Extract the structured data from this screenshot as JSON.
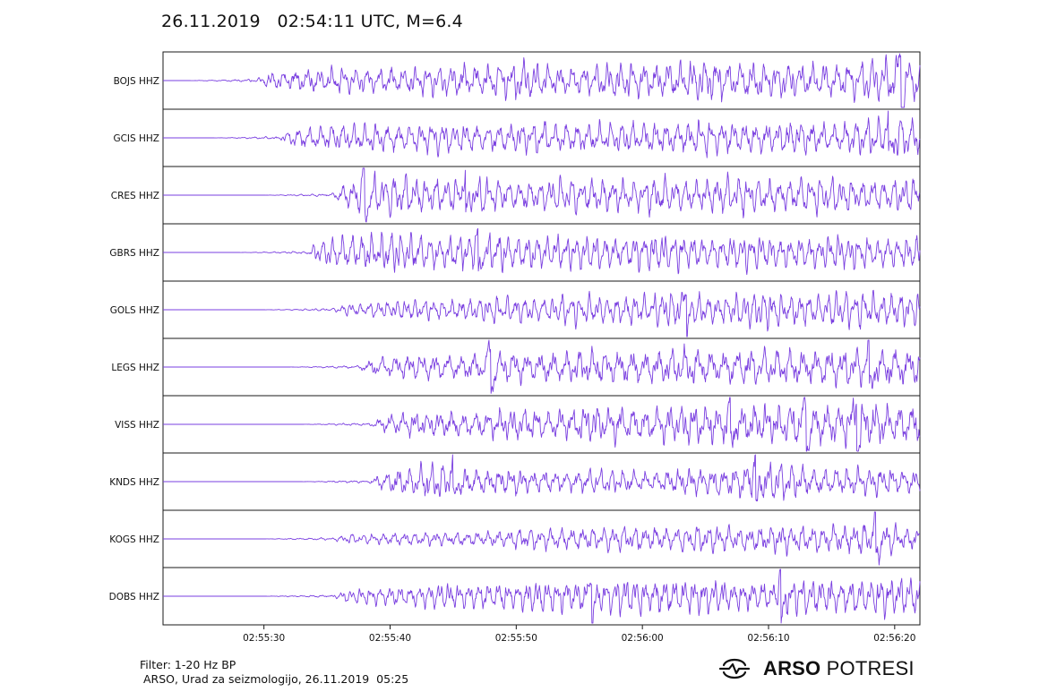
{
  "header": {
    "title": "26.11.2019   02:54:11 UTC, M=6.4"
  },
  "chart_data": {
    "type": "line",
    "title": "26.11.2019   02:54:11 UTC, M=6.4",
    "xlabel": "",
    "ylabel": "",
    "x_ticks": [
      "02:55:30",
      "02:55:40",
      "02:55:50",
      "02:56:00",
      "02:56:10",
      "02:56:20"
    ],
    "xlim": [
      "02:55:22",
      "02:56:22"
    ],
    "grid": false,
    "line_color": "#7a3fe0",
    "series": [
      {
        "name": "BOJS HHZ",
        "onset_s": 7,
        "envelope": [
          0.25,
          0.5,
          0.55,
          0.6,
          0.6,
          0.75,
          0.85,
          0.65,
          0.75,
          0.8,
          0.85,
          0.9,
          0.75,
          0.8,
          0.95,
          1.0
        ],
        "spikes": [
          {
            "t": 58.5,
            "amp": 1.1
          }
        ]
      },
      {
        "name": "GCIS HHZ",
        "onset_s": 9,
        "envelope": [
          0.45,
          0.6,
          0.6,
          0.65,
          0.65,
          0.65,
          0.7,
          0.7,
          0.65,
          0.7,
          0.75,
          0.7,
          0.7,
          0.75,
          0.85,
          1.0
        ],
        "spikes": [
          {
            "t": 57.5,
            "amp": 1.0
          }
        ]
      },
      {
        "name": "CRES HHZ",
        "onset_s": 13,
        "envelope": [
          0.35,
          0.9,
          0.85,
          0.8,
          0.8,
          0.75,
          0.75,
          0.8,
          0.75,
          0.8,
          0.85,
          0.75,
          0.8,
          0.75,
          0.75,
          0.75
        ],
        "spikes": [
          {
            "t": 16,
            "amp": 0.95
          },
          {
            "t": 24,
            "amp": 0.95
          }
        ]
      },
      {
        "name": "GBRS HHZ",
        "onset_s": 11,
        "envelope": [
          0.35,
          0.85,
          0.9,
          0.85,
          0.8,
          0.8,
          0.8,
          0.75,
          0.75,
          0.8,
          0.7,
          0.75,
          0.7,
          0.75,
          0.7,
          0.7
        ],
        "spikes": [
          {
            "t": 25,
            "amp": 1.1
          }
        ]
      },
      {
        "name": "GOLS HHZ",
        "onset_s": 13,
        "envelope": [
          0.25,
          0.35,
          0.45,
          0.5,
          0.55,
          0.6,
          0.7,
          0.65,
          0.75,
          0.8,
          0.7,
          0.85,
          0.75,
          0.8,
          0.8,
          0.85
        ],
        "spikes": [
          {
            "t": 41.5,
            "amp": 1.1
          }
        ]
      },
      {
        "name": "LEGS HHZ",
        "onset_s": 15,
        "envelope": [
          0.25,
          0.5,
          0.55,
          0.6,
          0.7,
          0.65,
          0.75,
          0.7,
          0.75,
          0.8,
          0.75,
          0.8,
          0.85,
          0.8,
          0.85,
          0.85
        ],
        "spikes": [
          {
            "t": 26,
            "amp": 0.95
          },
          {
            "t": 56,
            "amp": 1.0
          }
        ]
      },
      {
        "name": "VISS HHZ",
        "onset_s": 16,
        "envelope": [
          0.3,
          0.5,
          0.55,
          0.6,
          0.65,
          0.7,
          0.75,
          0.8,
          0.8,
          0.85,
          0.9,
          0.85,
          0.9,
          0.95,
          0.9,
          0.9
        ],
        "spikes": [
          {
            "t": 45,
            "amp": 1.0
          },
          {
            "t": 51,
            "amp": 1.0
          },
          {
            "t": 55,
            "amp": 1.0
          }
        ]
      },
      {
        "name": "KNDS HHZ",
        "onset_s": 16,
        "envelope": [
          0.3,
          0.65,
          0.9,
          0.6,
          0.55,
          0.5,
          0.55,
          0.5,
          0.5,
          0.55,
          0.75,
          0.9,
          0.65,
          0.6,
          0.6,
          0.55
        ],
        "spikes": [
          {
            "t": 23,
            "amp": 1.0
          },
          {
            "t": 47,
            "amp": 1.05
          }
        ]
      },
      {
        "name": "KOGS HHZ",
        "onset_s": 13,
        "envelope": [
          0.15,
          0.25,
          0.3,
          0.3,
          0.35,
          0.45,
          0.5,
          0.5,
          0.55,
          0.6,
          0.6,
          0.6,
          0.6,
          0.65,
          0.8,
          0.5
        ],
        "spikes": [
          {
            "t": 56.5,
            "amp": 1.0
          }
        ]
      },
      {
        "name": "DOBS HHZ",
        "onset_s": 13,
        "envelope": [
          0.2,
          0.35,
          0.45,
          0.55,
          0.6,
          0.65,
          0.7,
          0.75,
          0.8,
          0.75,
          0.75,
          0.7,
          0.8,
          0.8,
          0.85,
          0.8
        ],
        "spikes": [
          {
            "t": 34,
            "amp": 0.95
          },
          {
            "t": 49,
            "amp": 1.0
          }
        ]
      }
    ]
  },
  "footer": {
    "filter": "Filter: 1-20 Hz BP",
    "credit": "ARSO, Urad za seizmologijo, 26.11.2019  05:25"
  },
  "brand": {
    "bold": "ARSO",
    "light": " POTRESI",
    "logo_icon": "seismograph-logo-icon"
  }
}
